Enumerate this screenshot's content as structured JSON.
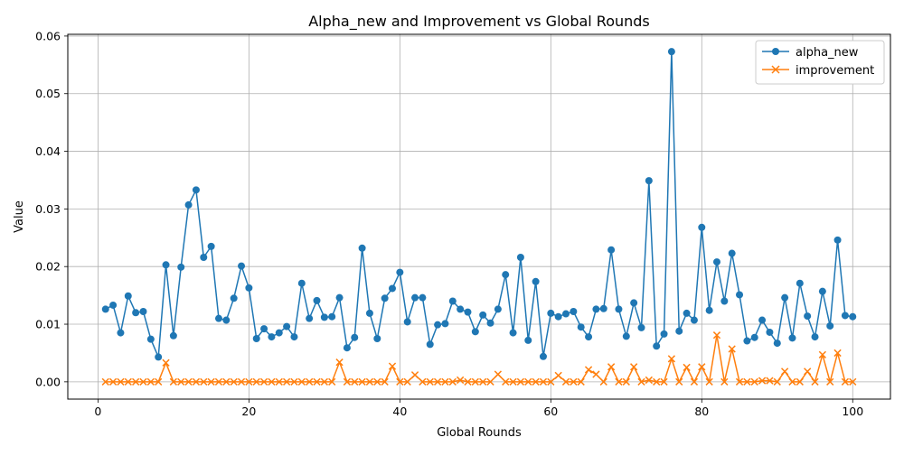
{
  "chart_data": {
    "type": "line",
    "title": "Alpha_new and Improvement vs Global Rounds",
    "xlabel": "Global Rounds",
    "ylabel": "Value",
    "xlim": [
      -4,
      105
    ],
    "ylim": [
      -0.003,
      0.0603
    ],
    "xticks": [
      0,
      20,
      40,
      60,
      80,
      100
    ],
    "xtick_labels": [
      "0",
      "20",
      "40",
      "60",
      "80",
      "100"
    ],
    "yticks": [
      0.0,
      0.01,
      0.02,
      0.03,
      0.04,
      0.05,
      0.06
    ],
    "ytick_labels": [
      "0.00",
      "0.01",
      "0.02",
      "0.03",
      "0.04",
      "0.05",
      "0.06"
    ],
    "grid": true,
    "legend_position": "top-right",
    "x": [
      1,
      2,
      3,
      4,
      5,
      6,
      7,
      8,
      9,
      10,
      11,
      12,
      13,
      14,
      15,
      16,
      17,
      18,
      19,
      20,
      21,
      22,
      23,
      24,
      25,
      26,
      27,
      28,
      29,
      30,
      31,
      32,
      33,
      34,
      35,
      36,
      37,
      38,
      39,
      40,
      41,
      42,
      43,
      44,
      45,
      46,
      47,
      48,
      49,
      50,
      51,
      52,
      53,
      54,
      55,
      56,
      57,
      58,
      59,
      60,
      61,
      62,
      63,
      64,
      65,
      66,
      67,
      68,
      69,
      70,
      71,
      72,
      73,
      74,
      75,
      76,
      77,
      78,
      79,
      80,
      81,
      82,
      83,
      84,
      85,
      86,
      87,
      88,
      89,
      90,
      91,
      92,
      93,
      94,
      95,
      96,
      97,
      98,
      99,
      100
    ],
    "series": [
      {
        "name": "alpha_new",
        "color": "#1f77b4",
        "marker": "circle",
        "values": [
          0.0126,
          0.0133,
          0.0085,
          0.0149,
          0.012,
          0.0122,
          0.0074,
          0.0043,
          0.0203,
          0.008,
          0.0199,
          0.0307,
          0.0333,
          0.0216,
          0.0235,
          0.011,
          0.0107,
          0.0145,
          0.0201,
          0.0163,
          0.0075,
          0.0092,
          0.0078,
          0.0085,
          0.0096,
          0.0078,
          0.0171,
          0.011,
          0.0141,
          0.0112,
          0.0113,
          0.0146,
          0.0059,
          0.0077,
          0.0232,
          0.0119,
          0.0075,
          0.0145,
          0.0162,
          0.019,
          0.0104,
          0.0146,
          0.0146,
          0.0065,
          0.0099,
          0.0101,
          0.014,
          0.0126,
          0.0121,
          0.0087,
          0.0116,
          0.0102,
          0.0126,
          0.0186,
          0.0085,
          0.0216,
          0.0072,
          0.0174,
          0.0044,
          0.0119,
          0.0113,
          0.0118,
          0.0122,
          0.0095,
          0.0078,
          0.0126,
          0.0127,
          0.0229,
          0.0126,
          0.0079,
          0.0137,
          0.0094,
          0.0349,
          0.0062,
          0.0083,
          0.0573,
          0.0088,
          0.0119,
          0.0107,
          0.0268,
          0.0124,
          0.0208,
          0.014,
          0.0223,
          0.0151,
          0.0071,
          0.0077,
          0.0107,
          0.0086,
          0.0067,
          0.0146,
          0.0076,
          0.0171,
          0.0114,
          0.0078,
          0.0157,
          0.0097,
          0.0246,
          0.0115,
          0.0113
        ]
      },
      {
        "name": "improvement",
        "color": "#ff7f0e",
        "marker": "x",
        "values": [
          0,
          0,
          0,
          0,
          0,
          0,
          0,
          0,
          0.0033,
          0,
          0,
          0,
          0,
          0,
          0,
          0,
          0,
          0,
          0,
          0,
          0,
          0,
          0,
          0,
          0,
          0,
          0,
          0,
          0,
          0,
          0,
          0.0034,
          0,
          0,
          0,
          0,
          0,
          0,
          0.0027,
          0,
          0,
          0.0012,
          0,
          0,
          0,
          0,
          0,
          0.0003,
          0,
          0,
          0,
          0,
          0.0013,
          0,
          0,
          0,
          0,
          0,
          0,
          0,
          0.0011,
          0,
          0,
          0,
          0.0021,
          0.0013,
          0,
          0.0026,
          0,
          0,
          0.0026,
          0,
          0.0003,
          0,
          0,
          0.004,
          0,
          0.0025,
          0,
          0.0026,
          0,
          0.0081,
          0,
          0.0057,
          0,
          0,
          0,
          0.0002,
          0.0002,
          0,
          0.0018,
          0,
          0,
          0.0018,
          0,
          0.0047,
          0,
          0.005,
          0,
          0
        ]
      }
    ]
  }
}
